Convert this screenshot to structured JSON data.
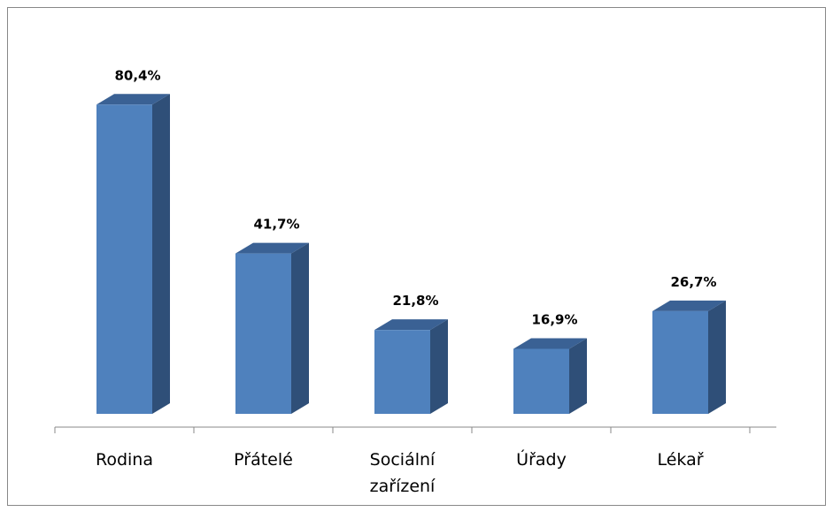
{
  "chart_data": {
    "type": "bar3d",
    "categories": [
      "Rodina",
      "Přátelé",
      "Sociální zařízení",
      "Úřady",
      "Lékař"
    ],
    "values": [
      80.4,
      41.7,
      21.8,
      16.9,
      26.7
    ],
    "value_labels": [
      "80,4%",
      "41,7%",
      "21,8%",
      "16,9%",
      "26,7%"
    ],
    "color": "#4f81bd"
  }
}
